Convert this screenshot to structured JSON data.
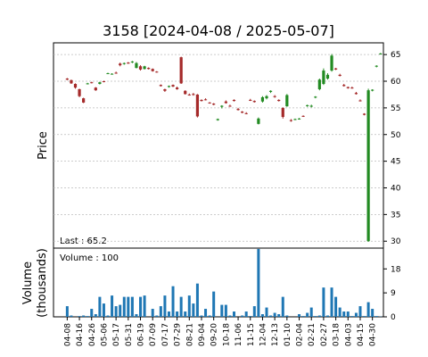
{
  "chart_data": [
    {
      "type": "candlestick",
      "title": "3158   [2024-04-08 / 2025-05-07]",
      "ylabel": "Price",
      "annotation": "Last : 65.2",
      "up_color": "#228b22",
      "down_color": "#a52a2a",
      "grid": true,
      "categories": [
        "04-08",
        null,
        null,
        "04-16",
        null,
        null,
        "04-26",
        null,
        null,
        "05-06",
        null,
        null,
        "05-17",
        null,
        null,
        "05-31",
        null,
        null,
        "06-19",
        null,
        null,
        "07-09",
        null,
        null,
        "07-17",
        null,
        null,
        "07-29",
        null,
        null,
        "08-21",
        null,
        null,
        "09-04",
        null,
        null,
        "09-20",
        null,
        null,
        "10-18",
        null,
        null,
        "11-06",
        null,
        null,
        "11-15",
        null,
        null,
        "12-04",
        null,
        null,
        "12-13",
        null,
        null,
        "01-10",
        null,
        null,
        "02-04",
        null,
        null,
        "02-21",
        null,
        null,
        "02-27",
        null,
        null,
        "03-18",
        null,
        null,
        "04-03",
        null,
        null,
        "04-15",
        null,
        null,
        "04-30",
        null,
        null
      ],
      "open": [
        60.5,
        60.2,
        59.5,
        58.5,
        56.8,
        59.5,
        59.8,
        58.8,
        59.5,
        60,
        61.5,
        61.4,
        61.6,
        63.3,
        63.3,
        63.5,
        63.6,
        62.5,
        62.8,
        62.3,
        62.5,
        62.3,
        61.8,
        59.3,
        58.5,
        59,
        59.3,
        58.8,
        64.5,
        58.2,
        57.5,
        57.6,
        57.5,
        56.5,
        56.6,
        56,
        55.8,
        52.7,
        55.2,
        56.2,
        55.4,
        56.5,
        54.8,
        54.3,
        54,
        56.5,
        56.3,
        52,
        56.2,
        56.8,
        58,
        57.2,
        56.5,
        55,
        55.3,
        52.7,
        52.8,
        52.9,
        53.5,
        55.4,
        55.3,
        57,
        58.5,
        59.5,
        60.5,
        62,
        62.4,
        61.2,
        59.3,
        58.9,
        58.8,
        57.8,
        56.4,
        53.9,
        30,
        58.3,
        62.8,
        65.1
      ],
      "high": [
        60.6,
        60.3,
        59.6,
        58.6,
        56.9,
        59.7,
        59.9,
        58.9,
        59.9,
        60.1,
        61.6,
        61.5,
        61.8,
        63.5,
        63.5,
        63.6,
        63.8,
        63.6,
        63,
        62.9,
        62.6,
        62.4,
        61.9,
        59.4,
        58.6,
        59.2,
        59.4,
        59,
        64.6,
        58.3,
        57.7,
        57.8,
        57.6,
        56.6,
        56.8,
        56.1,
        55.9,
        53,
        55.5,
        56.4,
        55.6,
        56.6,
        55,
        54.4,
        54.2,
        56.7,
        56.4,
        53.2,
        57.2,
        57.4,
        58.3,
        57.4,
        56.6,
        55.1,
        57.6,
        52.9,
        53,
        53.1,
        53.6,
        55.6,
        55.6,
        57.2,
        60.5,
        62.4,
        61.5,
        65.1,
        62.5,
        61.4,
        59.5,
        59,
        59,
        58,
        56.6,
        54,
        58.6,
        58.5,
        63,
        65.3
      ],
      "low": [
        60.2,
        59.5,
        58.6,
        57,
        55.9,
        59.4,
        59.6,
        58.2,
        59.4,
        59.8,
        61.4,
        61.3,
        61.4,
        62.8,
        63.1,
        63.3,
        63.4,
        62.4,
        62,
        62.2,
        62.2,
        61.8,
        61.6,
        59,
        58,
        58.8,
        58.9,
        58.4,
        59.5,
        57.5,
        57.3,
        57.3,
        53.2,
        56.2,
        56.4,
        55.8,
        55.5,
        52.6,
        54.9,
        55.8,
        55.2,
        56.2,
        54.5,
        54,
        53.8,
        56.3,
        56,
        51.9,
        56,
        56.6,
        57.8,
        56.9,
        56.2,
        53,
        55.2,
        52.4,
        52.7,
        52.8,
        53.3,
        55.2,
        55.1,
        56.8,
        58.3,
        59.3,
        60.3,
        61.8,
        62.1,
        60.9,
        59,
        58.6,
        58.6,
        57.5,
        56.2,
        53.6,
        29.9,
        58.1,
        62.6,
        65
      ],
      "close": [
        60.3,
        59.6,
        58.8,
        57.2,
        56,
        59.6,
        59.7,
        58.3,
        59.8,
        59.9,
        61.5,
        61.4,
        61.5,
        63,
        63.4,
        63.3,
        63.7,
        63.4,
        62.2,
        62.8,
        62.3,
        61.9,
        61.7,
        59.1,
        58.2,
        59.1,
        59,
        58.5,
        59.6,
        57.6,
        57.4,
        57.5,
        53.4,
        56.3,
        56.5,
        55.9,
        55.6,
        52.9,
        55.4,
        55.9,
        55.3,
        56.3,
        54.6,
        54.1,
        53.9,
        56.4,
        56.1,
        53,
        57,
        57.2,
        58.2,
        57.1,
        56.3,
        53.3,
        57.4,
        52.6,
        52.9,
        53,
        53.4,
        55.5,
        55.4,
        57.1,
        60.3,
        62,
        61.2,
        64.8,
        62.2,
        61,
        59.1,
        58.7,
        58.7,
        57.6,
        56.3,
        53.7,
        58.3,
        58.4,
        62.9,
        65.2
      ],
      "ylim": [
        28.7,
        67.2
      ],
      "yticks": [
        30,
        35,
        40,
        45,
        50,
        55,
        60,
        65
      ]
    },
    {
      "type": "bar",
      "ylabel": [
        "Volume",
        "(thousands)"
      ],
      "annotation": "Volume : 100",
      "color": "#1f77b4",
      "values": [
        4,
        0.5,
        0,
        0.3,
        0.5,
        0.3,
        3,
        1,
        7.5,
        5,
        0.5,
        8,
        4,
        4.5,
        7.5,
        7.5,
        7.5,
        1,
        7.5,
        8,
        0,
        3,
        0.5,
        4,
        8,
        2,
        11.5,
        2,
        7.5,
        2,
        8,
        5,
        12.5,
        0.5,
        3,
        0.5,
        9.5,
        0,
        4.5,
        4.5,
        0.5,
        2,
        0,
        0.5,
        2,
        0.3,
        4,
        25.5,
        1,
        3.5,
        0.5,
        1.5,
        1,
        7.5,
        0.5,
        0,
        0,
        1,
        0.3,
        1.5,
        3.5,
        0.3,
        0.5,
        11,
        0.5,
        11,
        7.5,
        3.5,
        2,
        2,
        0.3,
        1.5,
        4,
        0.3,
        5.5,
        3,
        0.3,
        0.1
      ],
      "ylim": [
        0,
        25.8
      ],
      "yticks": [
        0,
        9,
        18
      ]
    }
  ]
}
